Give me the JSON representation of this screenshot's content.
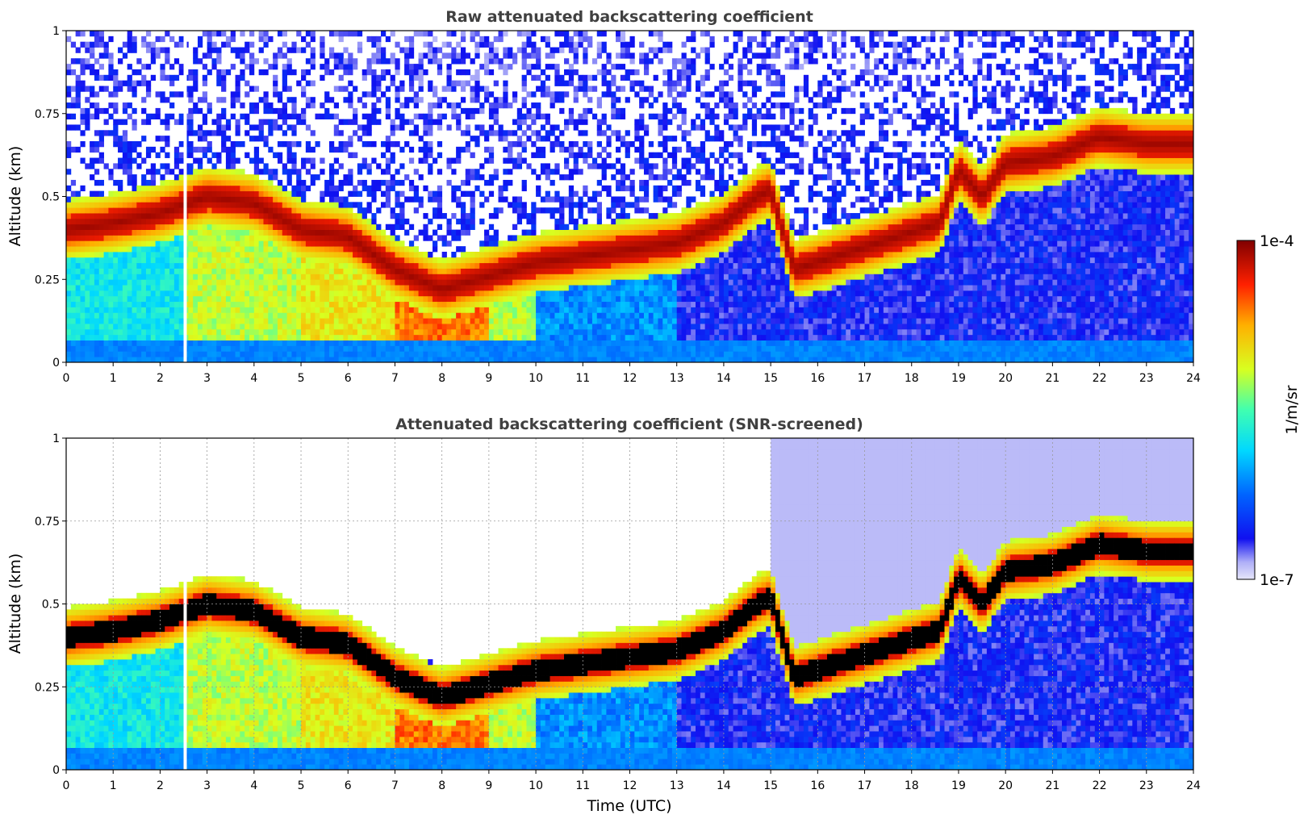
{
  "chart_data": [
    {
      "type": "heatmap",
      "title": "Raw attenuated backscattering coefficient",
      "xlabel": "",
      "ylabel": "Altitude (km)",
      "xlim": [
        0,
        24
      ],
      "ylim": [
        0,
        1
      ],
      "x_ticks": [
        "0",
        "1",
        "2",
        "3",
        "4",
        "5",
        "6",
        "7",
        "8",
        "9",
        "10",
        "11",
        "12",
        "13",
        "14",
        "15",
        "16",
        "17",
        "18",
        "19",
        "20",
        "21",
        "22",
        "23",
        "24"
      ],
      "y_ticks": [
        "0",
        "0.25",
        "0.5",
        "0.75",
        "1"
      ],
      "grid": false,
      "screened": false,
      "layer_height_km": {
        "x": [
          0,
          1,
          2,
          3,
          4,
          5,
          6,
          7,
          8,
          9,
          10,
          11,
          12,
          13,
          14,
          14.7,
          15,
          15.5,
          18.6,
          19,
          19.5,
          20,
          21,
          22,
          23
        ],
        "y": [
          0.4,
          0.42,
          0.45,
          0.5,
          0.48,
          0.4,
          0.38,
          0.28,
          0.22,
          0.26,
          0.3,
          0.32,
          0.34,
          0.36,
          0.42,
          0.5,
          0.52,
          0.28,
          0.42,
          0.58,
          0.5,
          0.6,
          0.62,
          0.68,
          0.66
        ]
      }
    },
    {
      "type": "heatmap",
      "title": "Attenuated backscattering coefficient (SNR-screened)",
      "xlabel": "Time (UTC)",
      "ylabel": "Altitude (km)",
      "xlim": [
        0,
        24
      ],
      "ylim": [
        0,
        1
      ],
      "x_ticks": [
        "0",
        "1",
        "2",
        "3",
        "4",
        "5",
        "6",
        "7",
        "8",
        "9",
        "10",
        "11",
        "12",
        "13",
        "14",
        "15",
        "16",
        "17",
        "18",
        "19",
        "20",
        "21",
        "22",
        "23",
        "24"
      ],
      "y_ticks": [
        "0",
        "0.25",
        "0.5",
        "0.75",
        "1"
      ],
      "grid": true,
      "screened": true,
      "layer_height_km": {
        "x": [
          0,
          1,
          2,
          3,
          4,
          5,
          6,
          7,
          8,
          9,
          10,
          11,
          12,
          13,
          14,
          14.7,
          15,
          15.5,
          18.6,
          19,
          19.5,
          20,
          21,
          22,
          23
        ],
        "y": [
          0.4,
          0.42,
          0.45,
          0.5,
          0.48,
          0.4,
          0.38,
          0.28,
          0.22,
          0.26,
          0.3,
          0.32,
          0.34,
          0.36,
          0.42,
          0.5,
          0.52,
          0.28,
          0.42,
          0.58,
          0.5,
          0.6,
          0.62,
          0.68,
          0.66
        ]
      }
    }
  ],
  "colorbar": {
    "label": "1/m/sr",
    "min_label": "1e-7",
    "max_label": "1e-4",
    "min_value": 1e-07,
    "max_value": 0.0001,
    "scale": "log",
    "colormap": "jet"
  }
}
